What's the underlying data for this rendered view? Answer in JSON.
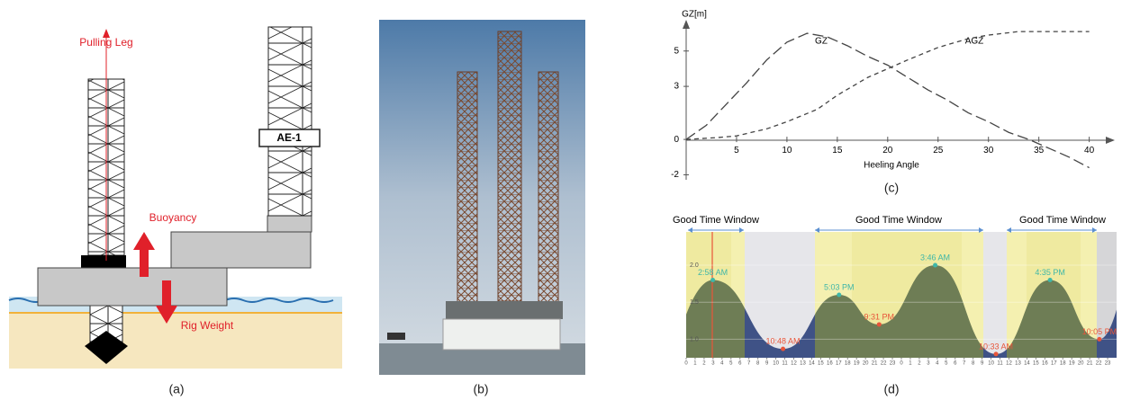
{
  "panel_a": {
    "labels": {
      "pulling_leg": "Pulling Leg",
      "buoyancy": "Buoyancy",
      "rig_weight": "Rig Weight",
      "unit": "AE-1"
    },
    "caption": "(a)"
  },
  "panel_b": {
    "caption": "(b)"
  },
  "chart_data": [
    {
      "type": "line",
      "caption": "(c)",
      "y_label": "GZ[m]",
      "x_label": "Heeling Angle",
      "xlim": [
        0,
        42
      ],
      "ylim": [
        -2.5,
        7
      ],
      "xticks": [
        5,
        10,
        15,
        20,
        25,
        30,
        35,
        40
      ],
      "yticks": [
        -2,
        0,
        3,
        5
      ],
      "series": [
        {
          "name": "GZ",
          "color": "#444444",
          "x": [
            0,
            2,
            4,
            6,
            8,
            10,
            12,
            14,
            16,
            18,
            20,
            22,
            24,
            26,
            28,
            30,
            32,
            34,
            36,
            38,
            40
          ],
          "values": [
            0,
            0.8,
            2,
            3.2,
            4.5,
            5.5,
            6,
            5.8,
            5.3,
            4.7,
            4.2,
            3.5,
            2.8,
            2.2,
            1.5,
            1,
            0.4,
            0,
            -0.5,
            -1,
            -1.6
          ]
        },
        {
          "name": "AGZ",
          "color": "#444444",
          "x": [
            0,
            3,
            5,
            8,
            10,
            13,
            15,
            18,
            20,
            22,
            25,
            28,
            30,
            33,
            35,
            38,
            40
          ],
          "values": [
            0,
            0.1,
            0.2,
            0.6,
            1,
            1.7,
            2.5,
            3.5,
            4,
            4.5,
            5.2,
            5.7,
            5.9,
            6.1,
            6.1,
            6.1,
            6.1
          ]
        }
      ]
    },
    {
      "type": "tide",
      "caption": "(d)",
      "windows": [
        "Good Time Window",
        "Good Time Window",
        "Good Time Window"
      ],
      "xlim": [
        0,
        48
      ],
      "ylim": [
        0.75,
        2.45
      ],
      "yticks": [
        {
          "value": 1,
          "label": "1.0"
        },
        {
          "value": 1.5,
          "label": "1.5"
        },
        {
          "value": 2,
          "label": "2.0"
        }
      ],
      "xticks": [
        0,
        1,
        2,
        3,
        4,
        5,
        6,
        7,
        8,
        9,
        10,
        11,
        12,
        13,
        14,
        15,
        16,
        17,
        18,
        19,
        20,
        21,
        22,
        23,
        {
          "value": 24,
          "label": "0"
        },
        {
          "value": 25,
          "label": "1"
        },
        {
          "value": 26,
          "label": "2"
        },
        {
          "value": 27,
          "label": "3"
        },
        {
          "value": 28,
          "label": "4"
        },
        {
          "value": 29,
          "label": "5"
        },
        {
          "value": 30,
          "label": "6"
        },
        {
          "value": 31,
          "label": "7"
        },
        {
          "value": 32,
          "label": "8"
        },
        {
          "value": 33,
          "label": "9"
        },
        {
          "value": 34,
          "label": "10"
        },
        {
          "value": 35,
          "label": "11"
        },
        {
          "value": 36,
          "label": "12"
        },
        {
          "value": 37,
          "label": "13"
        },
        {
          "value": 38,
          "label": "14"
        },
        {
          "value": 39,
          "label": "15"
        },
        {
          "value": 40,
          "label": "16"
        },
        {
          "value": 41,
          "label": "17"
        },
        {
          "value": 42,
          "label": "18"
        },
        {
          "value": 43,
          "label": "19"
        },
        {
          "value": 44,
          "label": "20"
        },
        {
          "value": 45,
          "label": "21"
        },
        {
          "value": 46,
          "label": "22"
        },
        {
          "value": 47,
          "label": "23"
        }
      ],
      "x": [
        2.97,
        10.8,
        17.05,
        21.52,
        27.77,
        34.55,
        40.58,
        46.08
      ],
      "values": [
        1.8,
        0.87,
        1.6,
        1.2,
        2.0,
        0.8,
        1.8,
        1.0
      ],
      "point_labels": [
        "2:58 AM",
        "10:48 AM",
        "5:03 PM",
        "9:31 PM",
        "3:46 AM",
        "10:33 AM",
        "4:35 PM",
        "10:05 PM"
      ],
      "high_color": "#3fb7a8",
      "low_color": "#e8553a",
      "fill_color": "#6e7d55",
      "off_fill_color": "#3f5286"
    }
  ]
}
